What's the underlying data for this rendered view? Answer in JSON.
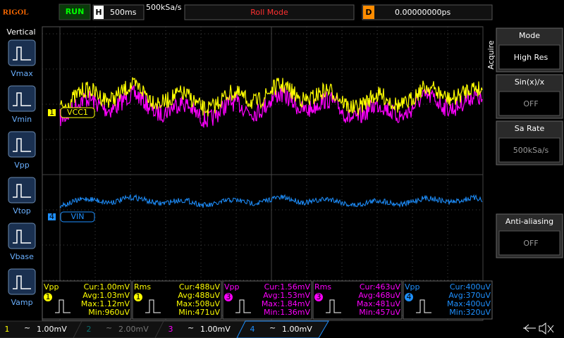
{
  "top_bar": {
    "brand": "RIGOL",
    "status": "RUN",
    "timebase_label": "H",
    "timebase": "500ms",
    "sample_rate": "500kSa/s",
    "mode": "Roll Mode",
    "trigger_label": "D",
    "delay": "0.00000000ps"
  },
  "left_menu": {
    "title": "Vertical",
    "items": [
      "Vmax",
      "Vmin",
      "Vpp",
      "Vtop",
      "Vbase",
      "Vamp"
    ]
  },
  "right_menu": {
    "section": "Acquire",
    "items": [
      {
        "label": "Mode",
        "value": "High Res"
      },
      {
        "label": "Sin(x)/x",
        "value": "OFF"
      },
      {
        "label": "Sa Rate",
        "value": "500kSa/s"
      },
      {
        "label": "Anti-aliasing",
        "value": "OFF"
      }
    ]
  },
  "trace_labels": [
    {
      "number": "1",
      "name": "VCC1"
    },
    {
      "number": "4",
      "name": "VIN"
    }
  ],
  "measurements": [
    {
      "type": "Vpp",
      "channel": "1",
      "cur": "Cur:1.00mV",
      "avg": "Avg:1.03mV",
      "max": "Max:1.12mV",
      "min": "Min:960uV"
    },
    {
      "type": "Rms",
      "channel": "1",
      "cur": "Cur:488uV",
      "avg": "Avg:488uV",
      "max": "Max:508uV",
      "min": "Min:471uV"
    },
    {
      "type": "Vpp",
      "channel": "3",
      "cur": "Cur:1.56mV",
      "avg": "Avg:1.53mV",
      "max": "Max:1.84mV",
      "min": "Min:1.36mV"
    },
    {
      "type": "Rms",
      "channel": "3",
      "cur": "Cur:463uV",
      "avg": "Avg:468uV",
      "max": "Max:481uV",
      "min": "Min:457uV"
    },
    {
      "type": "Vpp",
      "channel": "4",
      "cur": "Cur:400uV",
      "avg": "Avg:370uV",
      "max": "Max:400uV",
      "min": "Min:320uV"
    }
  ],
  "channel_bar": [
    {
      "number": "1",
      "scale": "1.00mV"
    },
    {
      "number": "2",
      "scale": "2.00mV"
    },
    {
      "number": "3",
      "scale": "1.00mV"
    },
    {
      "number": "4",
      "scale": "1.00mV"
    }
  ]
}
